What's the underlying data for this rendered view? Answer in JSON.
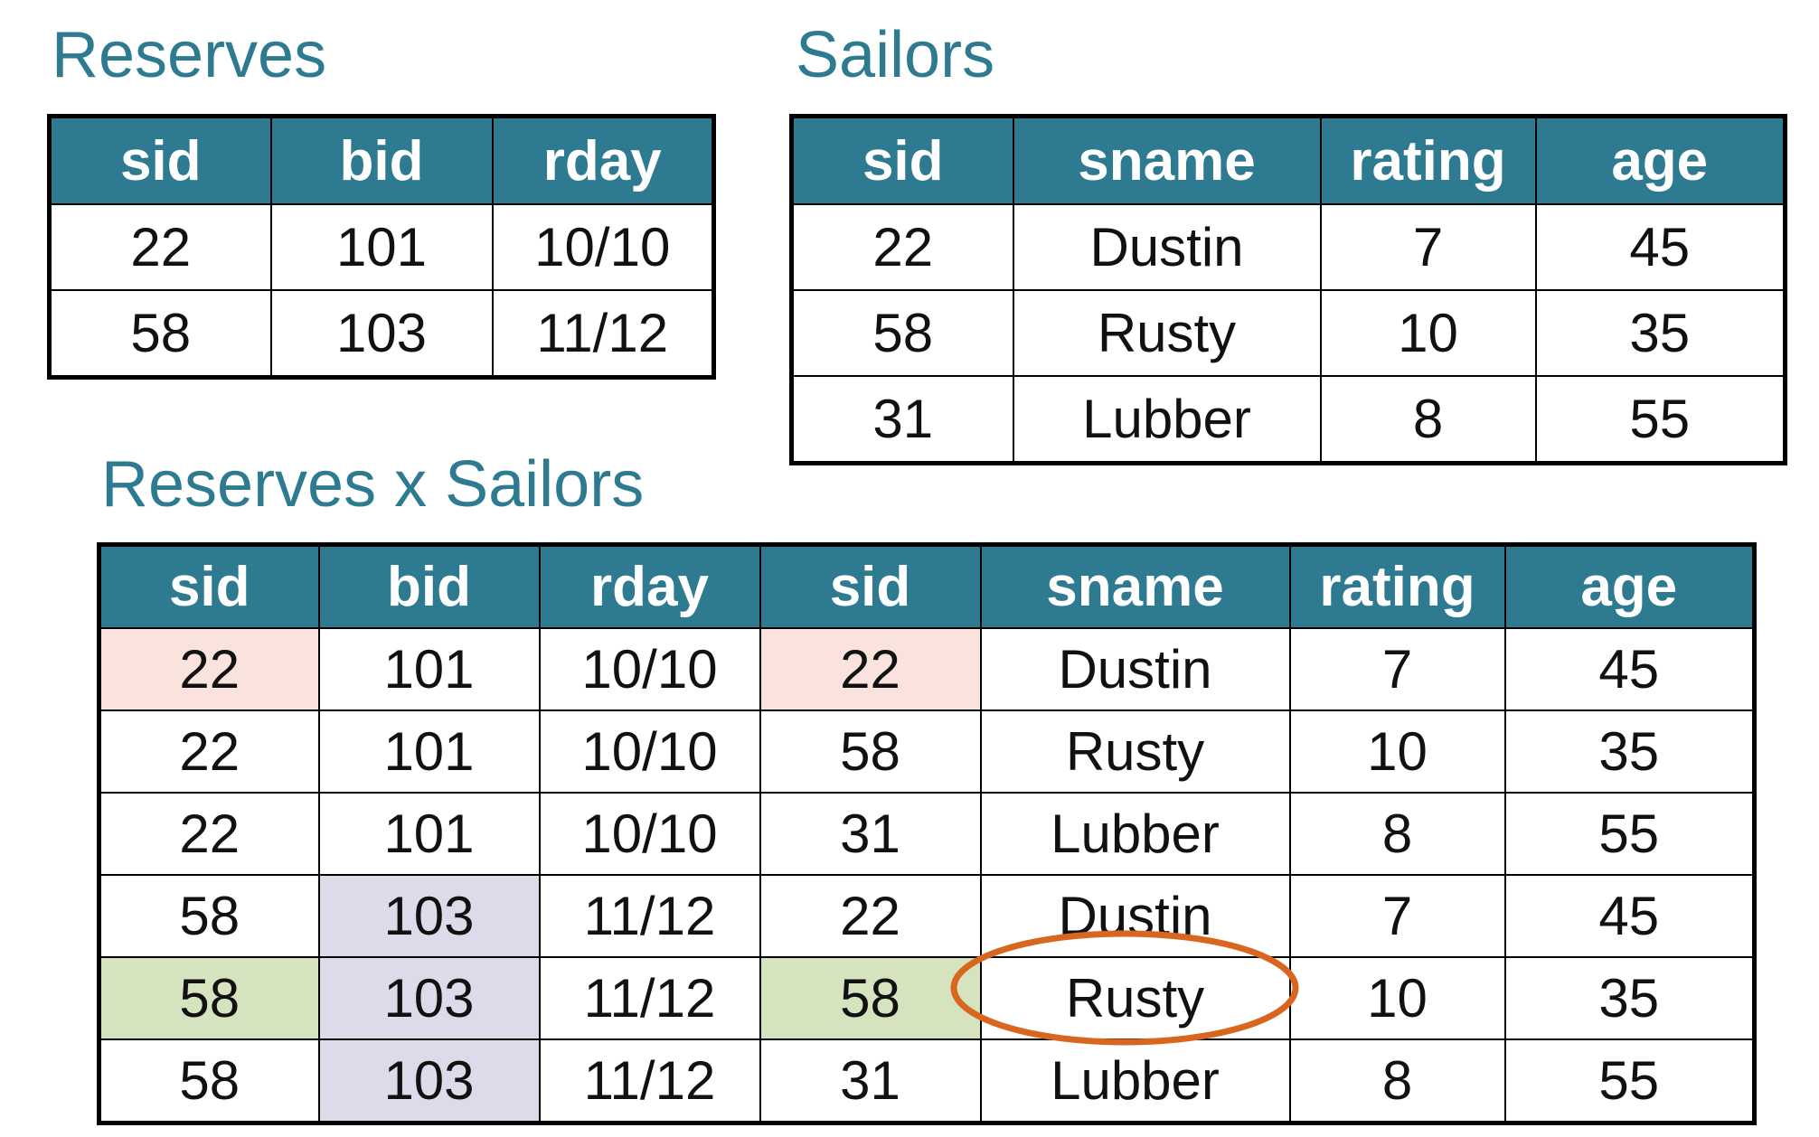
{
  "reserves": {
    "title": "Reserves",
    "columns": [
      "sid",
      "bid",
      "rday"
    ],
    "rows": [
      [
        "22",
        "101",
        "10/10"
      ],
      [
        "58",
        "103",
        "11/12"
      ]
    ]
  },
  "sailors": {
    "title": "Sailors",
    "columns": [
      "sid",
      "sname",
      "rating",
      "age"
    ],
    "rows": [
      [
        "22",
        "Dustin",
        "7",
        "45"
      ],
      [
        "58",
        "Rusty",
        "10",
        "35"
      ],
      [
        "31",
        "Lubber",
        "8",
        "55"
      ]
    ]
  },
  "product": {
    "title": "Reserves x Sailors",
    "columns": [
      "sid",
      "bid",
      "rday",
      "sid",
      "sname",
      "rating",
      "age"
    ],
    "rows": [
      [
        "22",
        "101",
        "10/10",
        "22",
        "Dustin",
        "7",
        "45"
      ],
      [
        "22",
        "101",
        "10/10",
        "58",
        "Rusty",
        "10",
        "35"
      ],
      [
        "22",
        "101",
        "10/10",
        "31",
        "Lubber",
        "8",
        "55"
      ],
      [
        "58",
        "103",
        "11/12",
        "22",
        "Dustin",
        "7",
        "45"
      ],
      [
        "58",
        "103",
        "11/12",
        "58",
        "Rusty",
        "10",
        "35"
      ],
      [
        "58",
        "103",
        "11/12",
        "31",
        "Lubber",
        "8",
        "55"
      ]
    ]
  },
  "highlight_colors": {
    "pink": "#f9e3dc",
    "green": "#d5e3bf",
    "purple": "#dcdbe9",
    "ellipse": "#d9661f",
    "header": "#2d7a91"
  }
}
